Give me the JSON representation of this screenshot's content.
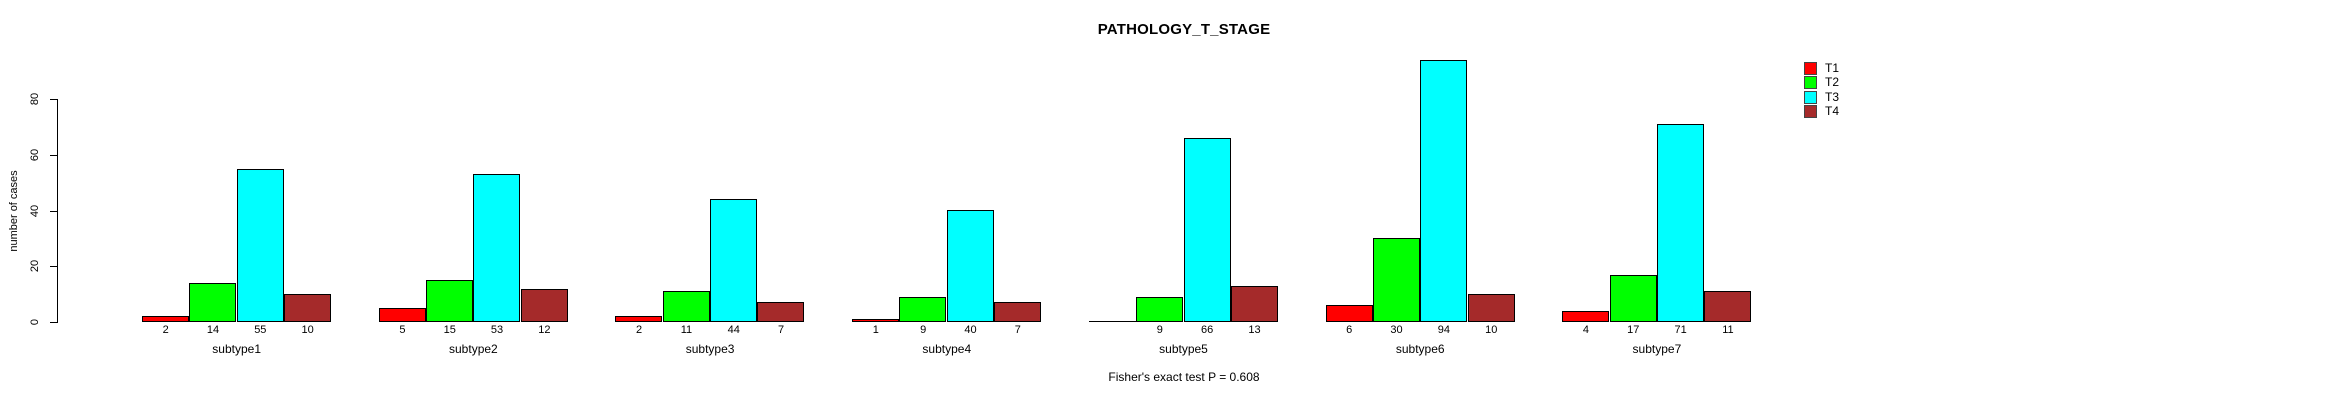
{
  "chart_data": {
    "type": "bar",
    "title": "PATHOLOGY_T_STAGE",
    "xlabel": "",
    "ylabel": "number of cases",
    "ylim": [
      0,
      80
    ],
    "yticks": [
      0,
      20,
      40,
      60,
      80
    ],
    "grid": false,
    "legend_position": "top-right",
    "bar_border_color": "#000000",
    "background_color": "#FFFFFF",
    "categories": [
      "subtype1",
      "subtype2",
      "subtype3",
      "subtype4",
      "subtype5",
      "subtype6",
      "subtype7"
    ],
    "series": [
      {
        "name": "T1",
        "color": "#FF0000",
        "values": [
          2,
          5,
          2,
          1,
          0,
          6,
          4
        ],
        "labels": [
          "2",
          "5",
          "2",
          "1",
          "",
          "6",
          "4"
        ]
      },
      {
        "name": "T2",
        "color": "#00FF00",
        "values": [
          14,
          15,
          11,
          9,
          9,
          30,
          17
        ],
        "labels": [
          "14",
          "15",
          "11",
          "9",
          "9",
          "30",
          "17"
        ]
      },
      {
        "name": "T3",
        "color": "#00FFFF",
        "values": [
          55,
          53,
          44,
          40,
          66,
          94,
          71
        ],
        "labels": [
          "55",
          "53",
          "44",
          "40",
          "66",
          "94",
          "71"
        ]
      },
      {
        "name": "T4",
        "color": "#A52A2A",
        "values": [
          10,
          12,
          7,
          7,
          13,
          10,
          11
        ],
        "labels": [
          "10",
          "12",
          "7",
          "7",
          "13",
          "10",
          "11"
        ]
      }
    ],
    "annotation": "Fisher's exact test P = 0.608"
  }
}
